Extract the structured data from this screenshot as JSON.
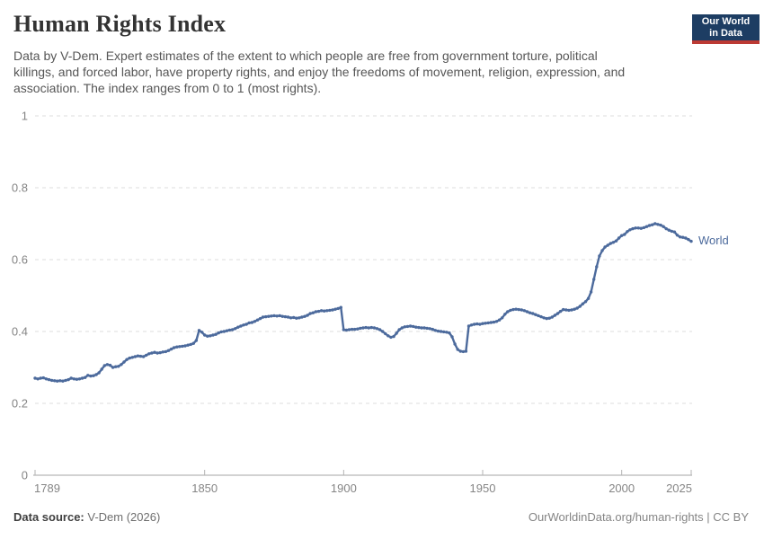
{
  "header": {
    "title": "Human Rights Index",
    "subtitle_lines": [
      "Data by V-Dem. Expert estimates of the extent to which people are free from government torture, political",
      "killings, and forced labor, have property rights, and enjoy the freedoms of movement, religion, expression, and",
      "association. The index ranges from 0 to 1 (most rights)."
    ],
    "logo": {
      "line1": "Our World",
      "line2": "in Data",
      "bg_color": "#1d3d63",
      "bar_color": "#bc3a34"
    }
  },
  "chart_data": {
    "type": "line",
    "title": "Human Rights Index",
    "xlabel": "",
    "ylabel": "",
    "xlim": [
      1789,
      2025
    ],
    "ylim": [
      0,
      1
    ],
    "x_ticks": [
      1789,
      1850,
      1900,
      1950,
      2000,
      2025
    ],
    "y_ticks": [
      0,
      0.2,
      0.4,
      0.6,
      0.8,
      1
    ],
    "grid": "dashed-horizontal",
    "legend": "inline-end-label",
    "series": [
      {
        "name": "World",
        "color": "#4c6a9c",
        "start_year": 1789,
        "values": [
          0.27,
          0.268,
          0.27,
          0.271,
          0.268,
          0.266,
          0.264,
          0.263,
          0.262,
          0.263,
          0.262,
          0.264,
          0.266,
          0.27,
          0.268,
          0.267,
          0.268,
          0.27,
          0.272,
          0.278,
          0.276,
          0.277,
          0.28,
          0.285,
          0.295,
          0.305,
          0.308,
          0.306,
          0.3,
          0.302,
          0.303,
          0.308,
          0.315,
          0.322,
          0.326,
          0.328,
          0.33,
          0.332,
          0.331,
          0.33,
          0.334,
          0.338,
          0.34,
          0.342,
          0.34,
          0.341,
          0.343,
          0.344,
          0.347,
          0.351,
          0.355,
          0.357,
          0.358,
          0.359,
          0.36,
          0.362,
          0.364,
          0.367,
          0.375,
          0.403,
          0.398,
          0.39,
          0.387,
          0.388,
          0.39,
          0.392,
          0.396,
          0.399,
          0.4,
          0.402,
          0.404,
          0.405,
          0.408,
          0.412,
          0.415,
          0.418,
          0.42,
          0.424,
          0.425,
          0.428,
          0.432,
          0.436,
          0.44,
          0.441,
          0.442,
          0.443,
          0.444,
          0.443,
          0.444,
          0.442,
          0.441,
          0.44,
          0.438,
          0.439,
          0.437,
          0.438,
          0.44,
          0.442,
          0.445,
          0.45,
          0.452,
          0.455,
          0.456,
          0.458,
          0.457,
          0.458,
          0.459,
          0.46,
          0.462,
          0.464,
          0.467,
          0.405,
          0.404,
          0.405,
          0.406,
          0.406,
          0.407,
          0.409,
          0.41,
          0.411,
          0.41,
          0.411,
          0.41,
          0.408,
          0.405,
          0.4,
          0.394,
          0.388,
          0.384,
          0.386,
          0.395,
          0.405,
          0.41,
          0.413,
          0.414,
          0.415,
          0.414,
          0.412,
          0.411,
          0.41,
          0.41,
          0.409,
          0.408,
          0.406,
          0.403,
          0.401,
          0.4,
          0.399,
          0.398,
          0.396,
          0.385,
          0.365,
          0.35,
          0.345,
          0.344,
          0.345,
          0.415,
          0.418,
          0.42,
          0.421,
          0.42,
          0.422,
          0.423,
          0.424,
          0.425,
          0.426,
          0.428,
          0.432,
          0.438,
          0.448,
          0.455,
          0.459,
          0.461,
          0.462,
          0.461,
          0.46,
          0.458,
          0.455,
          0.452,
          0.45,
          0.447,
          0.444,
          0.441,
          0.438,
          0.436,
          0.437,
          0.44,
          0.445,
          0.45,
          0.456,
          0.461,
          0.46,
          0.459,
          0.46,
          0.462,
          0.465,
          0.47,
          0.477,
          0.483,
          0.492,
          0.51,
          0.545,
          0.58,
          0.61,
          0.625,
          0.635,
          0.64,
          0.645,
          0.648,
          0.652,
          0.66,
          0.667,
          0.67,
          0.678,
          0.683,
          0.686,
          0.688,
          0.688,
          0.687,
          0.689,
          0.692,
          0.695,
          0.697,
          0.7,
          0.698,
          0.696,
          0.692,
          0.686,
          0.682,
          0.679,
          0.677,
          0.668,
          0.663,
          0.662,
          0.66,
          0.656,
          0.651
        ]
      }
    ]
  },
  "footer": {
    "source_label": "Data source:",
    "source_value": " V-Dem (2026)",
    "link": "OurWorldinData.org/human-rights | CC BY"
  },
  "colors": {
    "line": "#4c6a9c",
    "grid": "#dcdcdc",
    "axis": "#a6a6a6",
    "tick_label": "#858585"
  }
}
